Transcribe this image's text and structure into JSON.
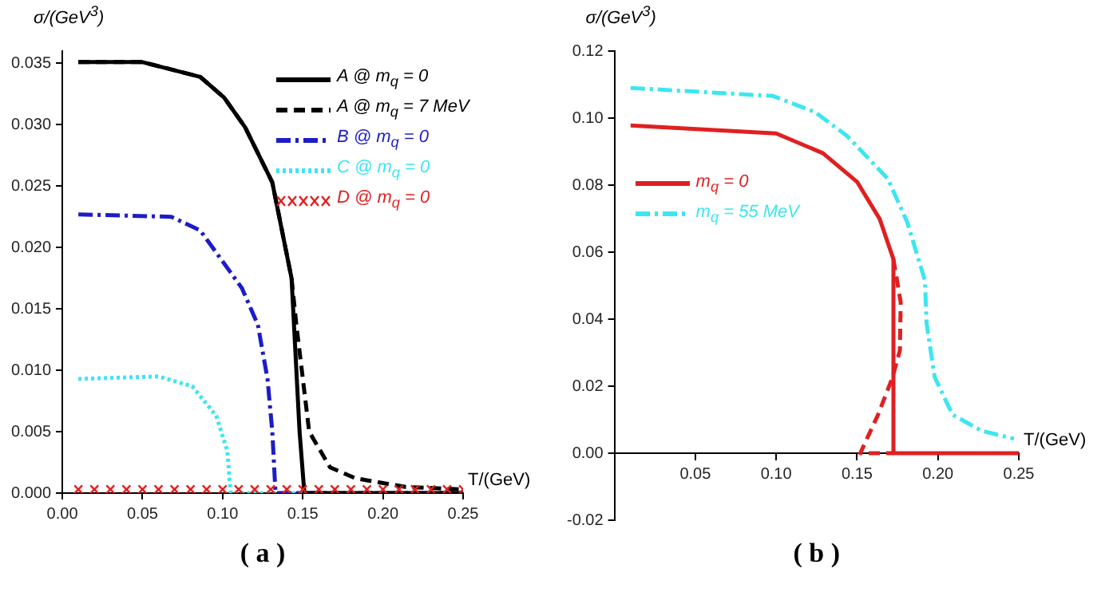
{
  "chart_data": [
    {
      "type": "line",
      "title": "( a )",
      "xlabel": "T/(GeV)",
      "ylabel": "σ/(GeV$^{3}$)",
      "legend": "top right",
      "xlim": [
        0,
        0.25
      ],
      "ylim": [
        0,
        0.036
      ],
      "xticks": [
        {
          "value": 0,
          "label": "0.00"
        },
        0.05,
        {
          "value": 0.1,
          "label": "0.10"
        },
        0.15,
        {
          "value": 0.2,
          "label": "0.20"
        },
        0.25
      ],
      "yticks": [
        {
          "value": 0,
          "label": "0.000"
        },
        0.005,
        {
          "value": 0.01,
          "label": "0.010"
        },
        0.015,
        {
          "value": 0.02,
          "label": "0.020"
        },
        0.025,
        {
          "value": 0.03,
          "label": "0.030"
        },
        0.035
      ],
      "series": [
        {
          "name": "A @ m$_{q}$ = 0",
          "color": "#000000",
          "line_style": "solid",
          "x": [
            0.01,
            0.05,
            0.086,
            0.101,
            0.114,
            0.131,
            0.143,
            0.148,
            0.151,
            0.25
          ],
          "values": [
            0.0351,
            0.0351,
            0.0339,
            0.0322,
            0.0298,
            0.0253,
            0.0175,
            0.005,
            0,
            0
          ]
        },
        {
          "name": "A @ m$_{q}$ = 7 MeV",
          "color": "#000000",
          "line_style": "dashed",
          "x": [
            0.01,
            0.05,
            0.086,
            0.101,
            0.114,
            0.131,
            0.143,
            0.146,
            0.154,
            0.167,
            0.183,
            0.214,
            0.25
          ],
          "values": [
            0.0351,
            0.0351,
            0.0339,
            0.0322,
            0.0298,
            0.0253,
            0.0175,
            0.0137,
            0.005,
            0.0021,
            0.0012,
            0.0005,
            0.0003
          ]
        },
        {
          "name": "B @ m$_{q}$ = 0",
          "color": "#1c1cc8",
          "line_style": "dashdot",
          "x": [
            0.01,
            0.068,
            0.086,
            0.112,
            0.122,
            0.128,
            0.131,
            0.133,
            0.25
          ],
          "values": [
            0.0227,
            0.0225,
            0.0214,
            0.0167,
            0.0137,
            0.0093,
            0.005,
            0,
            0
          ]
        },
        {
          "name": "C @ m$_{q}$ = 0",
          "color": "#3ce6f0",
          "line_style": "dotted",
          "x": [
            0.01,
            0.06,
            0.081,
            0.096,
            0.103,
            0.105,
            0.25
          ],
          "values": [
            0.0093,
            0.0095,
            0.0087,
            0.0063,
            0.0034,
            0,
            0
          ]
        },
        {
          "name": "D @ m$_{q}$ = 0",
          "color": "#e02020",
          "type": "scatter",
          "marker": "cross",
          "x": [
            0.01,
            0.02,
            0.03,
            0.04,
            0.05,
            0.06,
            0.07,
            0.08,
            0.09,
            0.1,
            0.11,
            0.12,
            0.13,
            0.14,
            0.15,
            0.16,
            0.17,
            0.18,
            0.19,
            0.2,
            0.21,
            0.22,
            0.23,
            0.24,
            0.25
          ],
          "values": [
            0.0003,
            0.0003,
            0.0003,
            0.0003,
            0.0003,
            0.0003,
            0.0003,
            0.0003,
            0.0003,
            0.0003,
            0.0003,
            0.0003,
            0.0003,
            0.0003,
            0.0003,
            0.0003,
            0.0003,
            0.0003,
            0.0003,
            0.0003,
            0.0003,
            0.0003,
            0.0003,
            0.0003,
            0.0003
          ]
        }
      ]
    },
    {
      "type": "line",
      "title": "( b )",
      "xlabel": "T/(GeV)",
      "ylabel": "σ/(GeV$^{3}$)",
      "legend": "left",
      "xlim": [
        0,
        0.25
      ],
      "ylim": [
        -0.02,
        0.12
      ],
      "xticks": [
        0.05,
        {
          "value": 0.1,
          "label": "0.10"
        },
        0.15,
        {
          "value": 0.2,
          "label": "0.20"
        },
        0.25
      ],
      "yticks": [
        -0.02,
        {
          "value": 0,
          "label": "0.00"
        },
        0.02,
        0.04,
        0.06,
        0.08,
        {
          "value": 0.1,
          "label": "0.10"
        },
        0.12
      ],
      "series": [
        {
          "name": "m$_{q}$ = 0",
          "color": "#e02020",
          "line_style": "solid",
          "x": [
            0.01,
            0.1,
            0.129,
            0.15,
            0.164,
            0.1725,
            0.1725,
            0.25
          ],
          "values": [
            0.0978,
            0.0954,
            0.0895,
            0.081,
            0.0699,
            0.0579,
            0,
            0
          ]
        },
        {
          "color": "#e02020",
          "line_style": "dashed",
          "x": [
            0.1725,
            0.177,
            0.1765,
            0.172,
            0.163,
            0.152,
            0.1725
          ],
          "values": [
            0.0579,
            0.045,
            0.0307,
            0.0227,
            0.0115,
            0,
            0
          ]
        },
        {
          "name": "m$_{q}$ = 55 MeV",
          "color": "#3ce6f0",
          "line_style": "dashdot",
          "x": [
            0.01,
            0.098,
            0.124,
            0.144,
            0.169,
            0.181,
            0.192,
            0.193,
            0.198,
            0.209,
            0.227,
            0.247
          ],
          "values": [
            0.109,
            0.1066,
            0.1018,
            0.0946,
            0.0819,
            0.069,
            0.0515,
            0.0387,
            0.0227,
            0.0115,
            0.0067,
            0.0043
          ]
        }
      ]
    }
  ]
}
